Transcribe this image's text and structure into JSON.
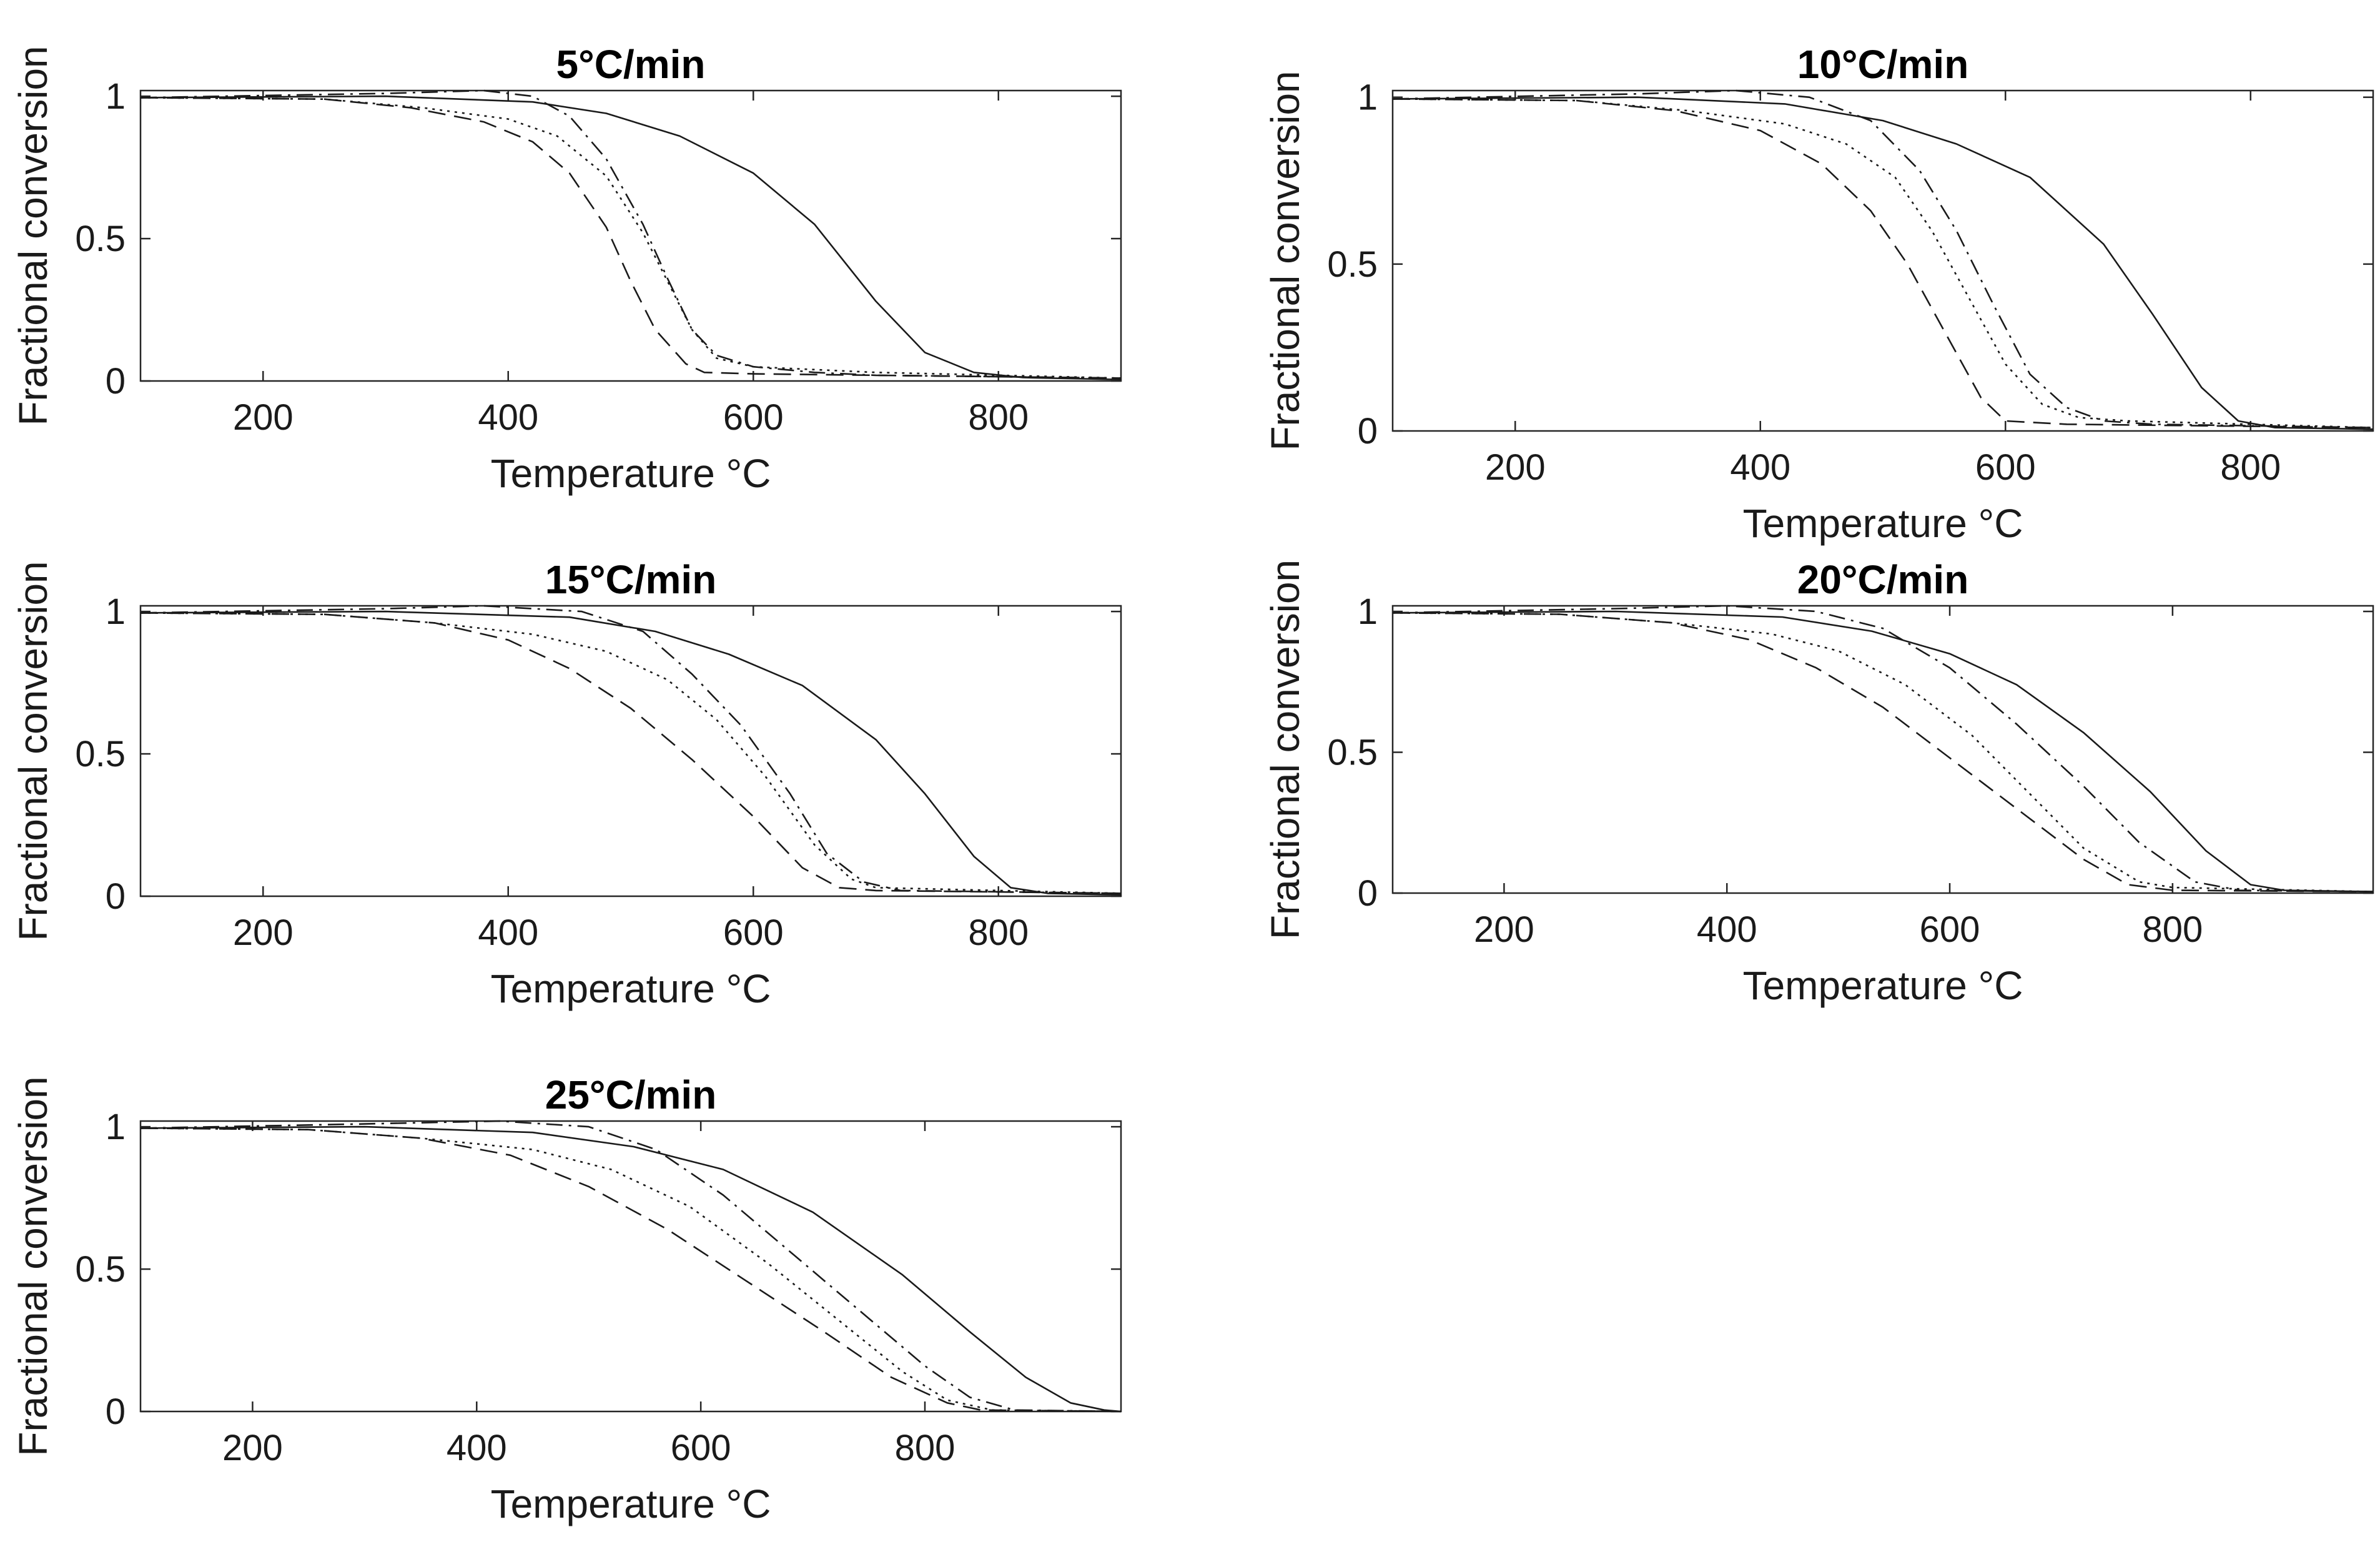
{
  "chart_data": [
    {
      "type": "line",
      "title": "5°C/min",
      "xlabel": "Temperature °C",
      "ylabel": "Fractional conversion",
      "xlim": [
        100,
        900
      ],
      "ylim": [
        0,
        1.02
      ],
      "xticks": [
        200,
        400,
        600,
        800
      ],
      "xtick_labels": [
        "200",
        "400",
        "600",
        "800"
      ],
      "yticks": [
        0,
        0.5,
        1
      ],
      "ytick_labels": [
        "0",
        "0.5",
        "1"
      ],
      "grid": false,
      "series": [
        {
          "name": "solid",
          "style": "solid",
          "x": [
            100,
            300,
            420,
            480,
            540,
            600,
            650,
            700,
            740,
            780,
            820,
            900
          ],
          "y": [
            0.995,
            1.0,
            0.98,
            0.94,
            0.86,
            0.73,
            0.55,
            0.28,
            0.1,
            0.03,
            0.012,
            0.005
          ]
        },
        {
          "name": "dashed",
          "style": "dashed",
          "x": [
            100,
            250,
            320,
            380,
            420,
            450,
            480,
            500,
            520,
            545,
            560,
            600,
            900
          ],
          "y": [
            0.995,
            0.99,
            0.96,
            0.91,
            0.84,
            0.73,
            0.54,
            0.35,
            0.18,
            0.06,
            0.03,
            0.025,
            0.01
          ]
        },
        {
          "name": "dotted",
          "style": "dotted",
          "x": [
            100,
            250,
            330,
            400,
            440,
            480,
            510,
            530,
            550,
            570,
            600,
            650,
            700,
            900
          ],
          "y": [
            0.995,
            0.99,
            0.96,
            0.92,
            0.86,
            0.72,
            0.52,
            0.35,
            0.18,
            0.08,
            0.05,
            0.04,
            0.03,
            0.01
          ]
        },
        {
          "name": "dash-dot",
          "style": "dashdot",
          "x": [
            100,
            300,
            380,
            420,
            450,
            480,
            510,
            530,
            550,
            570,
            600,
            650,
            700,
            900
          ],
          "y": [
            0.995,
            1.01,
            1.02,
            1.0,
            0.93,
            0.78,
            0.55,
            0.36,
            0.18,
            0.09,
            0.05,
            0.03,
            0.02,
            0.01
          ]
        }
      ]
    },
    {
      "type": "line",
      "title": "10°C/min",
      "xlabel": "Temperature °C",
      "ylabel": "Fractional conversion",
      "xlim": [
        100,
        900
      ],
      "ylim": [
        0,
        1.02
      ],
      "xticks": [
        200,
        400,
        600,
        800
      ],
      "xtick_labels": [
        "200",
        "400",
        "600",
        "800"
      ],
      "yticks": [
        0,
        0.5,
        1
      ],
      "ytick_labels": [
        "0",
        "0.5",
        "1"
      ],
      "grid": false,
      "series": [
        {
          "name": "solid",
          "style": "solid",
          "x": [
            100,
            300,
            420,
            500,
            560,
            620,
            680,
            720,
            760,
            790,
            820,
            900
          ],
          "y": [
            0.995,
            1.0,
            0.98,
            0.93,
            0.86,
            0.76,
            0.56,
            0.35,
            0.13,
            0.03,
            0.01,
            0.005
          ]
        },
        {
          "name": "dashed",
          "style": "dashed",
          "x": [
            100,
            250,
            330,
            400,
            450,
            490,
            520,
            550,
            580,
            600,
            650,
            900
          ],
          "y": [
            0.995,
            0.99,
            0.96,
            0.9,
            0.8,
            0.66,
            0.5,
            0.3,
            0.1,
            0.03,
            0.02,
            0.01
          ]
        },
        {
          "name": "dotted",
          "style": "dotted",
          "x": [
            100,
            250,
            340,
            420,
            470,
            510,
            540,
            570,
            600,
            630,
            660,
            700,
            900
          ],
          "y": [
            0.995,
            0.99,
            0.96,
            0.92,
            0.86,
            0.76,
            0.6,
            0.4,
            0.2,
            0.08,
            0.04,
            0.03,
            0.01
          ]
        },
        {
          "name": "dash-dot",
          "style": "dashdot",
          "x": [
            100,
            300,
            380,
            440,
            490,
            530,
            560,
            590,
            620,
            650,
            680,
            720,
            900
          ],
          "y": [
            0.995,
            1.01,
            1.02,
            1.0,
            0.93,
            0.78,
            0.6,
            0.38,
            0.17,
            0.07,
            0.03,
            0.02,
            0.01
          ]
        }
      ]
    },
    {
      "type": "line",
      "title": "15°C/min",
      "xlabel": "Temperature °C",
      "ylabel": "Fractional conversion",
      "xlim": [
        100,
        900
      ],
      "ylim": [
        0,
        1.02
      ],
      "xticks": [
        200,
        400,
        600,
        800
      ],
      "xtick_labels": [
        "200",
        "400",
        "600",
        "800"
      ],
      "yticks": [
        0,
        0.5,
        1
      ],
      "ytick_labels": [
        "0",
        "0.5",
        "1"
      ],
      "grid": false,
      "series": [
        {
          "name": "solid",
          "style": "solid",
          "x": [
            100,
            300,
            450,
            520,
            580,
            640,
            700,
            740,
            780,
            810,
            840,
            900
          ],
          "y": [
            0.995,
            1.0,
            0.98,
            0.93,
            0.85,
            0.74,
            0.55,
            0.36,
            0.14,
            0.03,
            0.01,
            0.005
          ]
        },
        {
          "name": "dashed",
          "style": "dashed",
          "x": [
            100,
            250,
            340,
            400,
            450,
            500,
            550,
            600,
            640,
            670,
            700,
            900
          ],
          "y": [
            0.995,
            0.99,
            0.96,
            0.9,
            0.8,
            0.66,
            0.48,
            0.28,
            0.1,
            0.03,
            0.02,
            0.01
          ]
        },
        {
          "name": "dotted",
          "style": "dotted",
          "x": [
            100,
            250,
            340,
            420,
            480,
            530,
            570,
            610,
            650,
            680,
            700,
            900
          ],
          "y": [
            0.995,
            0.99,
            0.96,
            0.92,
            0.86,
            0.76,
            0.62,
            0.42,
            0.18,
            0.06,
            0.03,
            0.01
          ]
        },
        {
          "name": "dash-dot",
          "style": "dashdot",
          "x": [
            100,
            300,
            380,
            460,
            510,
            550,
            590,
            630,
            660,
            690,
            720,
            900
          ],
          "y": [
            0.995,
            1.01,
            1.02,
            1.0,
            0.93,
            0.78,
            0.6,
            0.36,
            0.15,
            0.05,
            0.02,
            0.01
          ]
        }
      ]
    },
    {
      "type": "line",
      "title": "20°C/min",
      "xlabel": "Temperature °C",
      "ylabel": "Fractional conversion",
      "xlim": [
        100,
        980
      ],
      "ylim": [
        0,
        1.02
      ],
      "xticks": [
        200,
        400,
        600,
        800
      ],
      "xtick_labels": [
        "200",
        "400",
        "600",
        "800"
      ],
      "yticks": [
        0,
        0.5,
        1
      ],
      "ytick_labels": [
        "0",
        "0.5",
        "1"
      ],
      "grid": false,
      "series": [
        {
          "name": "solid",
          "style": "solid",
          "x": [
            100,
            300,
            450,
            530,
            600,
            660,
            720,
            780,
            830,
            870,
            900,
            980
          ],
          "y": [
            0.995,
            1.0,
            0.98,
            0.93,
            0.85,
            0.74,
            0.57,
            0.36,
            0.15,
            0.03,
            0.01,
            0.005
          ]
        },
        {
          "name": "dashed",
          "style": "dashed",
          "x": [
            100,
            250,
            350,
            420,
            480,
            540,
            600,
            660,
            720,
            760,
            800,
            980
          ],
          "y": [
            0.995,
            0.99,
            0.96,
            0.9,
            0.8,
            0.66,
            0.48,
            0.3,
            0.12,
            0.03,
            0.01,
            0.005
          ]
        },
        {
          "name": "dotted",
          "style": "dotted",
          "x": [
            100,
            250,
            350,
            440,
            500,
            560,
            620,
            670,
            720,
            770,
            800,
            980
          ],
          "y": [
            0.995,
            0.99,
            0.96,
            0.92,
            0.86,
            0.74,
            0.56,
            0.36,
            0.16,
            0.04,
            0.02,
            0.005
          ]
        },
        {
          "name": "dash-dot",
          "style": "dashdot",
          "x": [
            100,
            300,
            400,
            480,
            540,
            600,
            660,
            720,
            770,
            820,
            860,
            980
          ],
          "y": [
            0.995,
            1.01,
            1.02,
            1.0,
            0.94,
            0.8,
            0.6,
            0.38,
            0.18,
            0.04,
            0.01,
            0.005
          ]
        }
      ]
    },
    {
      "type": "line",
      "title": "25°C/min",
      "xlabel": "Temperature °C",
      "ylabel": "Fractional conversion",
      "xlim": [
        100,
        975
      ],
      "ylim": [
        0,
        1.02
      ],
      "xticks": [
        200,
        400,
        600,
        800
      ],
      "xtick_labels": [
        "200",
        "400",
        "600",
        "800"
      ],
      "yticks": [
        0,
        0.5,
        1
      ],
      "ytick_labels": [
        "0",
        "0.5",
        "1"
      ],
      "grid": false,
      "series": [
        {
          "name": "solid",
          "style": "solid",
          "x": [
            100,
            300,
            450,
            540,
            620,
            700,
            780,
            840,
            890,
            930,
            960,
            975
          ],
          "y": [
            0.995,
            1.0,
            0.98,
            0.93,
            0.85,
            0.7,
            0.48,
            0.28,
            0.12,
            0.03,
            0.005,
            0.0
          ]
        },
        {
          "name": "dashed",
          "style": "dashed",
          "x": [
            100,
            250,
            350,
            430,
            500,
            570,
            640,
            710,
            770,
            820,
            850,
            975
          ],
          "y": [
            0.995,
            0.99,
            0.96,
            0.9,
            0.79,
            0.64,
            0.46,
            0.28,
            0.12,
            0.03,
            0.005,
            0.0
          ]
        },
        {
          "name": "dotted",
          "style": "dotted",
          "x": [
            100,
            250,
            350,
            450,
            520,
            590,
            660,
            720,
            780,
            820,
            860,
            975
          ],
          "y": [
            0.995,
            0.99,
            0.96,
            0.92,
            0.85,
            0.72,
            0.52,
            0.33,
            0.14,
            0.04,
            0.005,
            0.0
          ]
        },
        {
          "name": "dash-dot",
          "style": "dashdot",
          "x": [
            100,
            300,
            420,
            500,
            560,
            620,
            680,
            740,
            800,
            840,
            880,
            975
          ],
          "y": [
            0.995,
            1.01,
            1.02,
            1.0,
            0.92,
            0.76,
            0.56,
            0.36,
            0.16,
            0.05,
            0.005,
            0.0
          ]
        }
      ]
    }
  ]
}
